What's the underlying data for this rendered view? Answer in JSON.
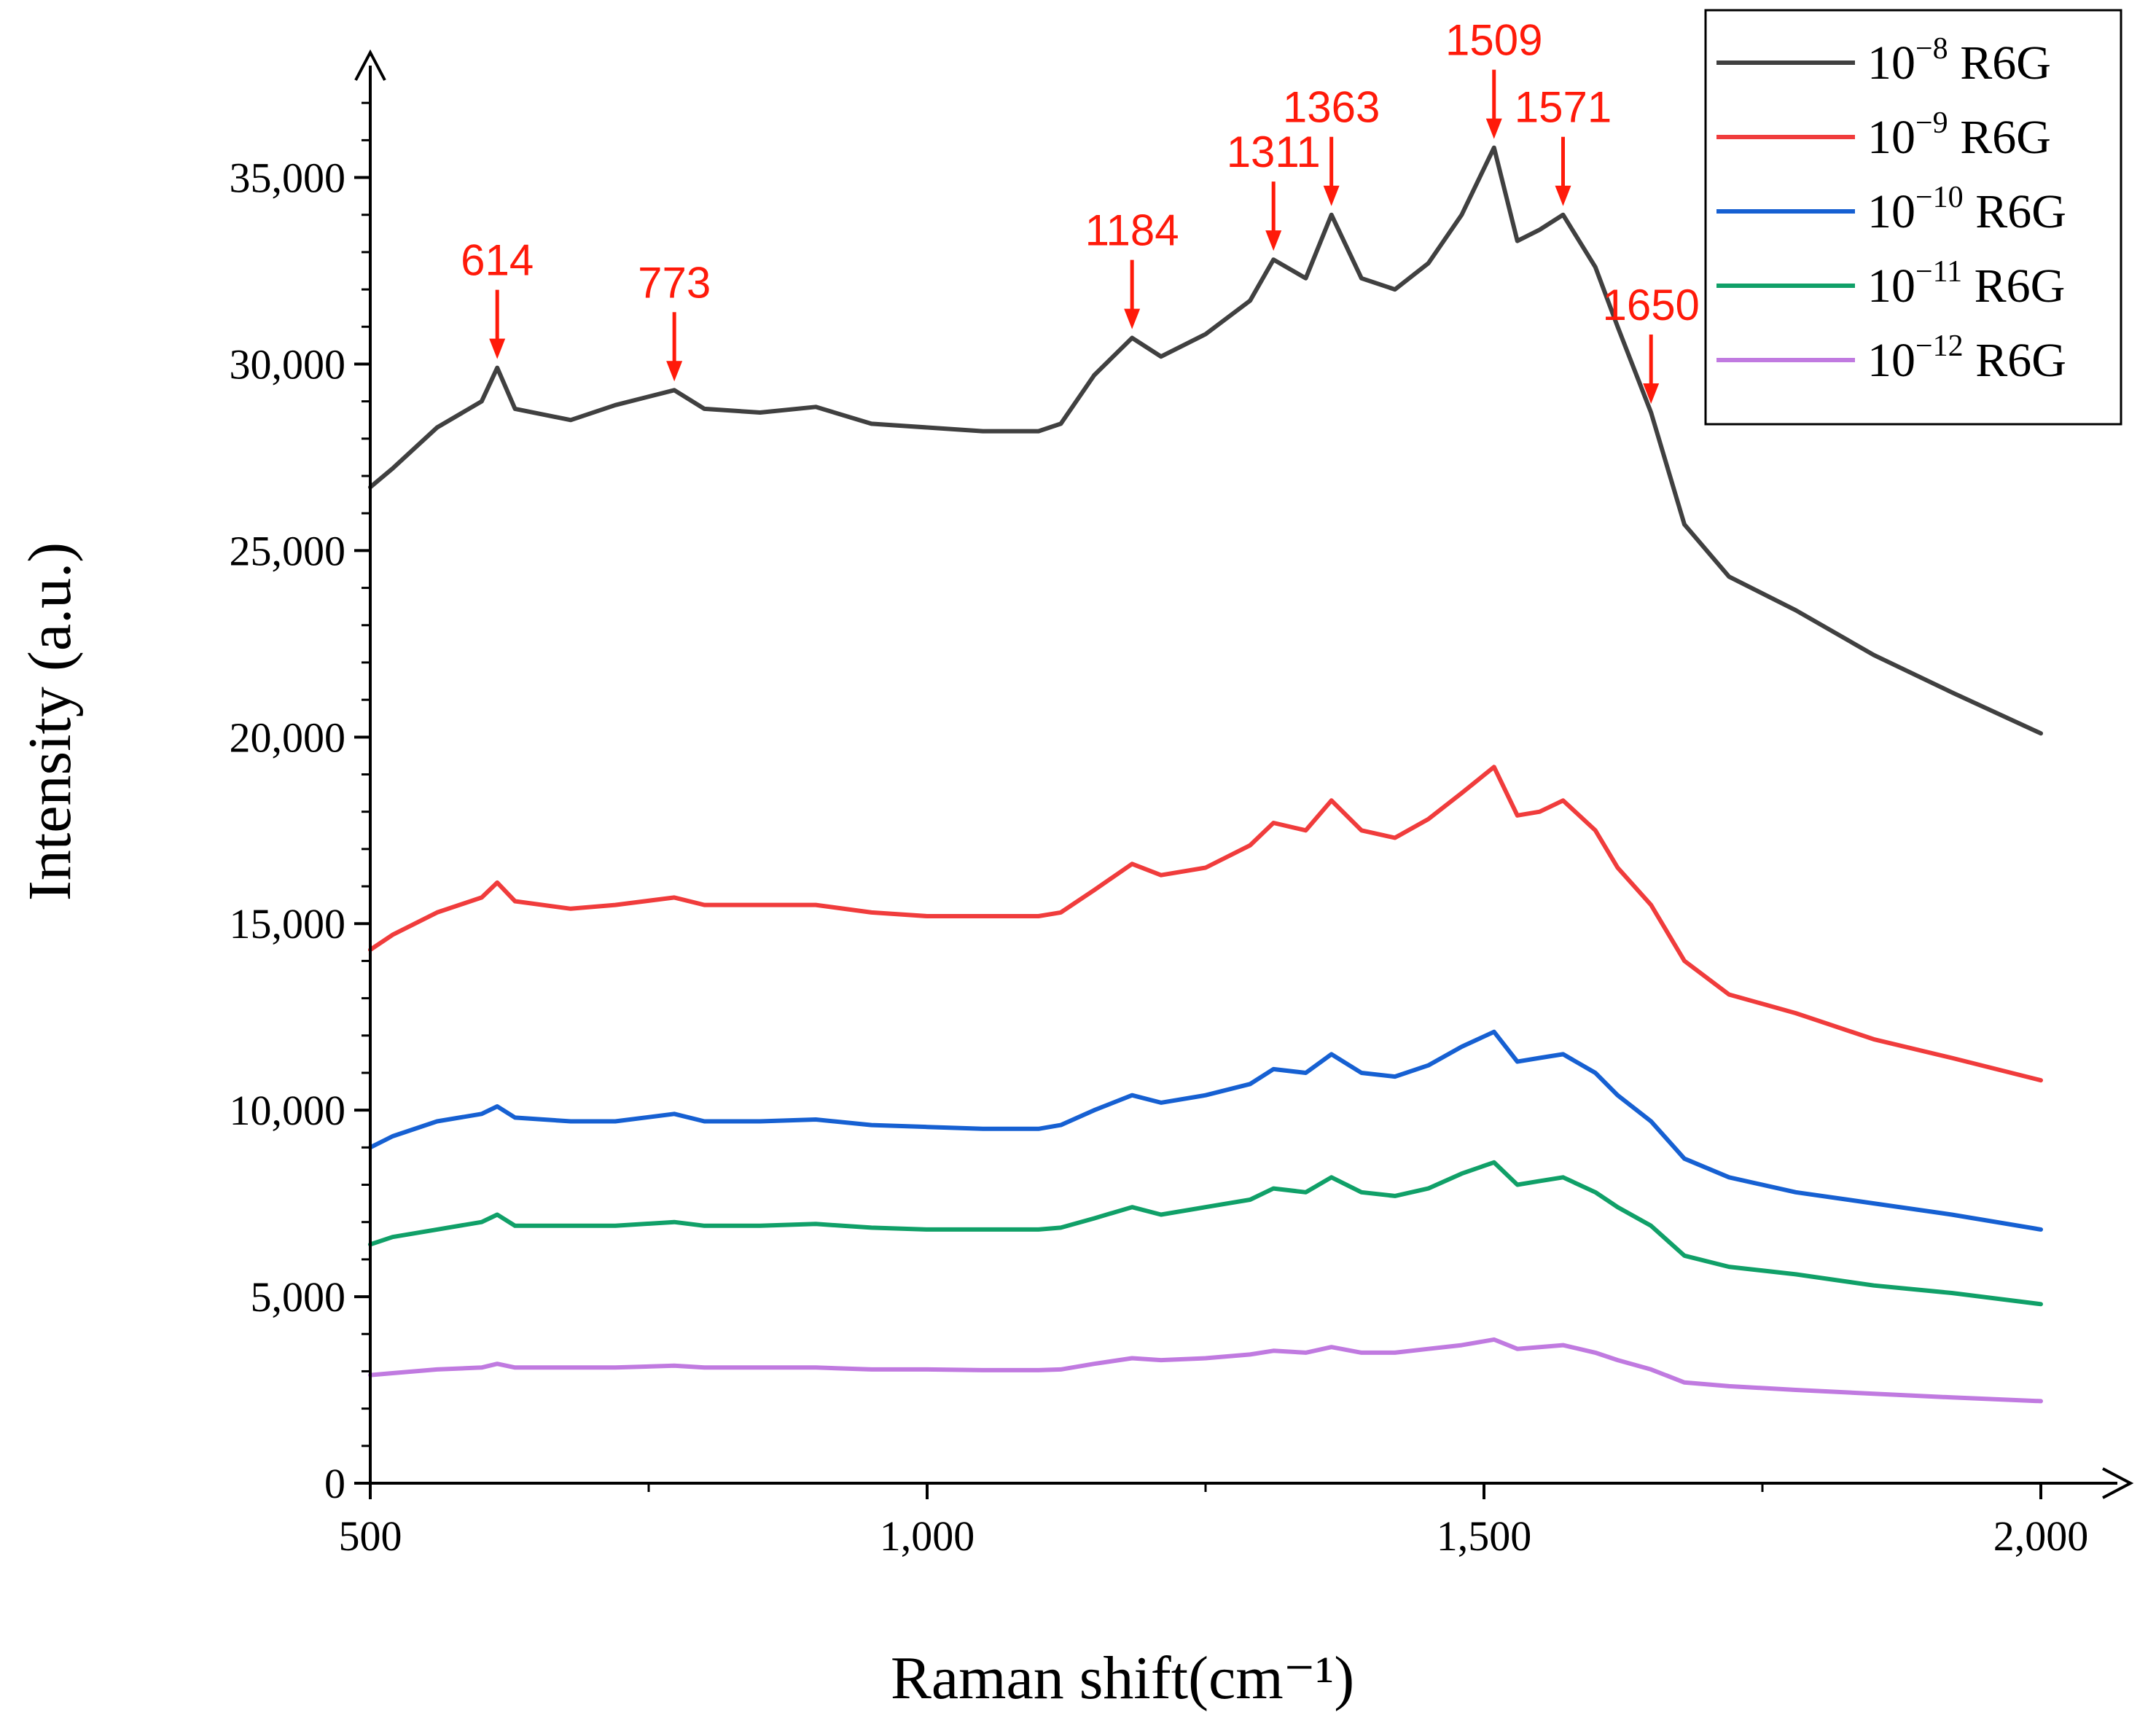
{
  "chart_data": {
    "type": "line",
    "title": "",
    "xlabel": "Raman shift(cm⁻¹)",
    "ylabel": "Intensity (a.u.)",
    "xlim": [
      500,
      2000
    ],
    "ylim": [
      0,
      38000
    ],
    "x_ticks": [
      500,
      1000,
      1500,
      2000
    ],
    "x_tick_labels": [
      "500",
      "1,000",
      "1,500",
      "2,000"
    ],
    "y_ticks": [
      0,
      5000,
      10000,
      15000,
      20000,
      25000,
      30000,
      35000
    ],
    "y_tick_labels": [
      "0",
      "5,000",
      "10,000",
      "15,000",
      "20,000",
      "25,000",
      "30,000",
      "35,000"
    ],
    "grid": false,
    "legend_position": "top-right",
    "x": [
      500,
      520,
      560,
      600,
      614,
      630,
      680,
      720,
      773,
      800,
      850,
      900,
      950,
      1000,
      1050,
      1100,
      1120,
      1150,
      1184,
      1210,
      1250,
      1290,
      1311,
      1340,
      1363,
      1390,
      1420,
      1450,
      1480,
      1509,
      1530,
      1550,
      1571,
      1600,
      1620,
      1650,
      1680,
      1720,
      1780,
      1850,
      1920,
      2000
    ],
    "series": [
      {
        "name": "10⁻⁸ R6G",
        "color": "#404040",
        "values": [
          26700,
          27200,
          28300,
          29000,
          29900,
          28800,
          28500,
          28900,
          29300,
          28800,
          28700,
          28850,
          28400,
          28300,
          28200,
          28200,
          28400,
          29700,
          30700,
          30200,
          30800,
          31700,
          32800,
          32300,
          34000,
          32300,
          32000,
          32700,
          34000,
          35800,
          33300,
          33600,
          34000,
          32600,
          31000,
          28700,
          25700,
          24300,
          23400,
          22200,
          21200,
          20100
        ]
      },
      {
        "name": "10⁻⁹ R6G",
        "color": "#f03c3c",
        "values": [
          14300,
          14700,
          15300,
          15700,
          16100,
          15600,
          15400,
          15500,
          15700,
          15500,
          15500,
          15500,
          15300,
          15200,
          15200,
          15200,
          15300,
          15900,
          16600,
          16300,
          16500,
          17100,
          17700,
          17500,
          18300,
          17500,
          17300,
          17800,
          18500,
          19200,
          17900,
          18000,
          18300,
          17500,
          16500,
          15500,
          14000,
          13100,
          12600,
          11900,
          11400,
          10800
        ]
      },
      {
        "name": "10⁻¹⁰ R6G",
        "color": "#1660d2",
        "values": [
          9000,
          9300,
          9700,
          9900,
          10100,
          9800,
          9700,
          9700,
          9900,
          9700,
          9700,
          9750,
          9600,
          9550,
          9500,
          9500,
          9600,
          10000,
          10400,
          10200,
          10400,
          10700,
          11100,
          11000,
          11500,
          11000,
          10900,
          11200,
          11700,
          12100,
          11300,
          11400,
          11500,
          11000,
          10400,
          9700,
          8700,
          8200,
          7800,
          7500,
          7200,
          6800
        ]
      },
      {
        "name": "10⁻¹¹ R6G",
        "color": "#10a068",
        "values": [
          6400,
          6600,
          6800,
          7000,
          7200,
          6900,
          6900,
          6900,
          7000,
          6900,
          6900,
          6950,
          6850,
          6800,
          6800,
          6800,
          6850,
          7100,
          7400,
          7200,
          7400,
          7600,
          7900,
          7800,
          8200,
          7800,
          7700,
          7900,
          8300,
          8600,
          8000,
          8100,
          8200,
          7800,
          7400,
          6900,
          6100,
          5800,
          5600,
          5300,
          5100,
          4800
        ]
      },
      {
        "name": "10⁻¹² R6G",
        "color": "#c07ae0",
        "values": [
          2900,
          2950,
          3050,
          3100,
          3200,
          3100,
          3100,
          3100,
          3150,
          3100,
          3100,
          3100,
          3050,
          3050,
          3030,
          3030,
          3050,
          3200,
          3350,
          3300,
          3350,
          3450,
          3550,
          3500,
          3650,
          3500,
          3500,
          3600,
          3700,
          3850,
          3600,
          3650,
          3700,
          3500,
          3300,
          3050,
          2700,
          2600,
          2500,
          2400,
          2300,
          2200
        ]
      }
    ],
    "annotations": [
      {
        "text": "614",
        "x": 614,
        "y": 29900
      },
      {
        "text": "773",
        "x": 773,
        "y": 29300
      },
      {
        "text": "1184",
        "x": 1184,
        "y": 30700
      },
      {
        "text": "1311",
        "x": 1311,
        "y": 32800
      },
      {
        "text": "1363",
        "x": 1363,
        "y": 34000
      },
      {
        "text": "1509",
        "x": 1509,
        "y": 35800
      },
      {
        "text": "1571",
        "x": 1571,
        "y": 34000
      },
      {
        "text": "1650",
        "x": 1650,
        "y": 28700
      }
    ],
    "annotation_color": "#ff1a0a",
    "legend": {
      "entries": [
        {
          "prefix": "10",
          "exp": "−8",
          "suffix": " R6G"
        },
        {
          "prefix": "10",
          "exp": "−9",
          "suffix": " R6G"
        },
        {
          "prefix": "10",
          "exp": "−10",
          "suffix": " R6G"
        },
        {
          "prefix": "10",
          "exp": "−11",
          "suffix": " R6G"
        },
        {
          "prefix": "10",
          "exp": "−12",
          "suffix": " R6G"
        }
      ]
    }
  }
}
